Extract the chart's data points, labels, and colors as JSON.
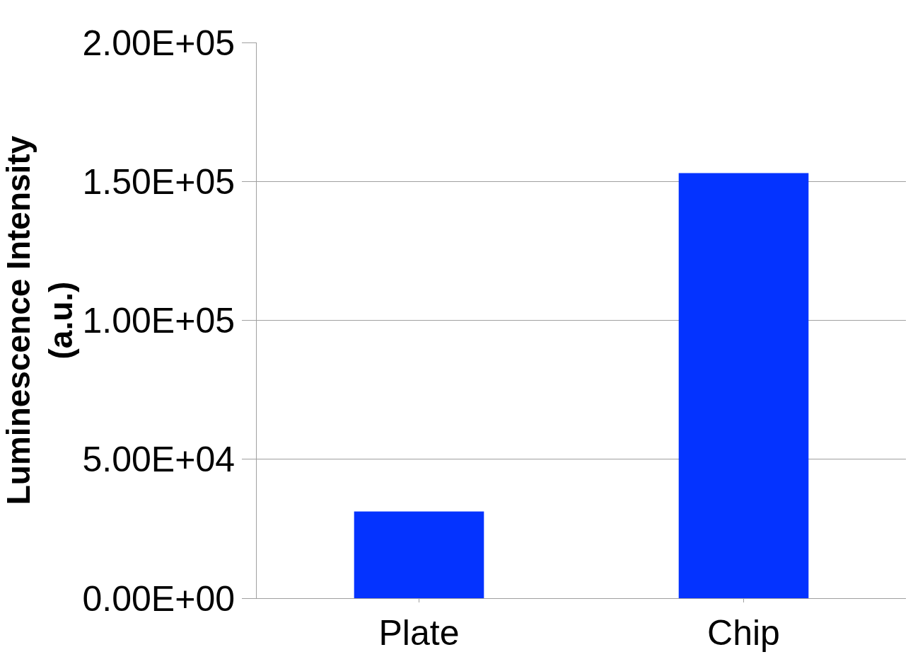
{
  "chart_data": {
    "type": "bar",
    "ylabel": "Luminescence Intensity\n(a.u.)",
    "categories": [
      "Plate",
      "Chip"
    ],
    "values": [
      31200,
      153000
    ],
    "color": "#0433ff",
    "ylim": [
      0,
      200000
    ],
    "yticks": [
      {
        "value": 0,
        "label": "0.00E+00"
      },
      {
        "value": 50000,
        "label": "5.00E+04"
      },
      {
        "value": 100000,
        "label": "1.00E+05"
      },
      {
        "value": 150000,
        "label": "1.50E+05"
      },
      {
        "value": 200000,
        "label": "2.00E+05"
      }
    ],
    "grid": "y"
  }
}
